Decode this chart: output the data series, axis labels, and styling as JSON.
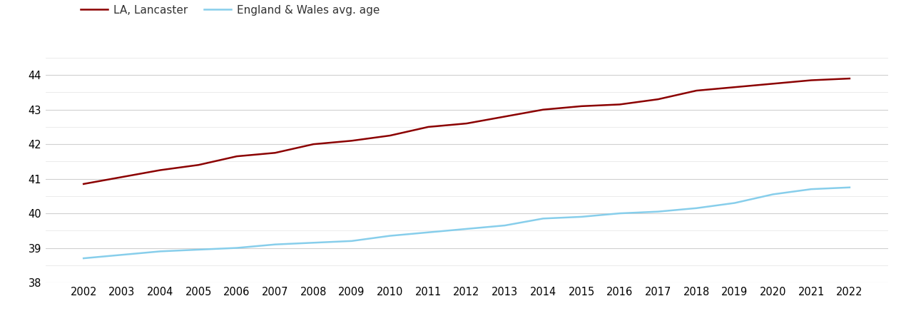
{
  "years": [
    2002,
    2003,
    2004,
    2005,
    2006,
    2007,
    2008,
    2009,
    2010,
    2011,
    2012,
    2013,
    2014,
    2015,
    2016,
    2017,
    2018,
    2019,
    2020,
    2021,
    2022
  ],
  "lancaster": [
    40.85,
    41.05,
    41.25,
    41.4,
    41.65,
    41.75,
    42.0,
    42.1,
    42.25,
    42.5,
    42.6,
    42.8,
    43.0,
    43.1,
    43.15,
    43.3,
    43.55,
    43.65,
    43.75,
    43.85,
    43.9
  ],
  "england_wales": [
    38.7,
    38.8,
    38.9,
    38.95,
    39.0,
    39.1,
    39.15,
    39.2,
    39.35,
    39.45,
    39.55,
    39.65,
    39.85,
    39.9,
    40.0,
    40.05,
    40.15,
    40.3,
    40.55,
    40.7,
    40.75
  ],
  "lancaster_color": "#8B0000",
  "england_wales_color": "#87CEEB",
  "lancaster_label": "LA, Lancaster",
  "england_wales_label": "England & Wales avg. age",
  "ylim": [
    38,
    44.5
  ],
  "yticks": [
    38,
    39,
    40,
    41,
    42,
    43,
    44
  ],
  "background_color": "#ffffff",
  "major_grid_color": "#d0d0d0",
  "minor_grid_color": "#e8e8e8",
  "line_width": 1.8,
  "font_size": 10.5
}
